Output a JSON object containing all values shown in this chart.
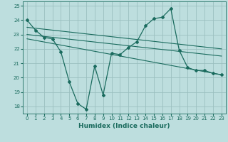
{
  "xlabel": "Humidex (Indice chaleur)",
  "background_color": "#bddede",
  "grid_color": "#9bbfbf",
  "line_color": "#1a6b5e",
  "xlim": [
    -0.5,
    23.5
  ],
  "ylim": [
    17.5,
    25.3
  ],
  "yticks": [
    18,
    19,
    20,
    21,
    22,
    23,
    24,
    25
  ],
  "xticks": [
    0,
    1,
    2,
    3,
    4,
    5,
    6,
    7,
    8,
    9,
    10,
    11,
    12,
    13,
    14,
    15,
    16,
    17,
    18,
    19,
    20,
    21,
    22,
    23
  ],
  "series1_x": [
    0,
    1,
    2,
    3,
    4,
    5,
    6,
    7,
    8,
    9,
    10,
    11,
    12,
    13,
    14,
    15,
    16,
    17,
    18,
    19,
    20,
    21,
    22,
    23
  ],
  "series1_y": [
    24.0,
    23.3,
    22.8,
    22.7,
    21.8,
    19.7,
    18.2,
    17.8,
    20.8,
    18.8,
    21.7,
    21.6,
    22.1,
    22.5,
    23.6,
    24.1,
    24.2,
    24.8,
    21.9,
    20.7,
    20.5,
    20.5,
    20.3,
    20.2
  ],
  "series2_x": [
    0,
    23
  ],
  "series2_y": [
    23.5,
    22.0
  ],
  "series3_x": [
    0,
    23
  ],
  "series3_y": [
    23.0,
    21.5
  ],
  "series4_x": [
    0,
    23
  ],
  "series4_y": [
    22.7,
    20.2
  ]
}
